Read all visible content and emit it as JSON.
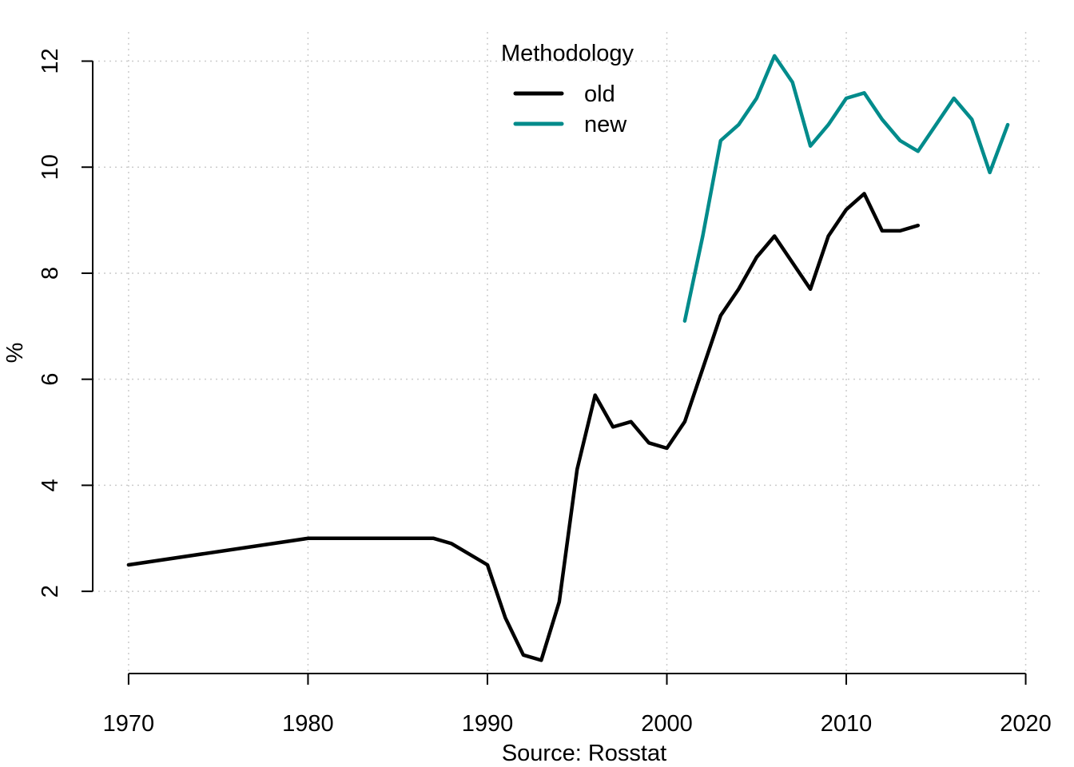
{
  "chart_data": {
    "type": "line",
    "xlabel": "Source: Rosstat",
    "ylabel": "%",
    "xlim": [
      1968,
      2021
    ],
    "ylim": [
      0.45,
      12.55
    ],
    "x_ticks": [
      1970,
      1980,
      1990,
      2000,
      2010,
      2020
    ],
    "y_ticks": [
      2,
      4,
      6,
      8,
      10,
      12
    ],
    "grid": true,
    "legend_title": "Methodology",
    "legend_position": "top-center",
    "series": [
      {
        "name": "old",
        "color": "#000000",
        "x": [
          1970,
          1980,
          1987,
          1988,
          1990,
          1991,
          1992,
          1993,
          1994,
          1995,
          1996,
          1997,
          1998,
          1999,
          2000,
          2001,
          2002,
          2003,
          2004,
          2005,
          2006,
          2007,
          2008,
          2009,
          2010,
          2011,
          2012,
          2013,
          2014
        ],
        "values": [
          2.5,
          3.0,
          3.0,
          2.9,
          2.5,
          1.5,
          0.8,
          0.7,
          1.8,
          4.3,
          5.7,
          5.1,
          5.2,
          4.8,
          4.7,
          5.2,
          6.2,
          7.2,
          7.7,
          8.3,
          8.7,
          8.2,
          7.7,
          8.7,
          9.2,
          9.5,
          8.8,
          8.8,
          8.9
        ]
      },
      {
        "name": "new",
        "color": "#008b8b",
        "x": [
          2001,
          2002,
          2003,
          2004,
          2005,
          2006,
          2007,
          2008,
          2009,
          2010,
          2011,
          2012,
          2013,
          2014,
          2015,
          2016,
          2017,
          2018,
          2019
        ],
        "values": [
          7.1,
          8.7,
          10.5,
          10.8,
          11.3,
          12.1,
          11.6,
          10.4,
          10.8,
          11.3,
          11.4,
          10.9,
          10.5,
          10.3,
          10.8,
          11.3,
          10.9,
          9.9,
          10.8
        ]
      }
    ]
  }
}
